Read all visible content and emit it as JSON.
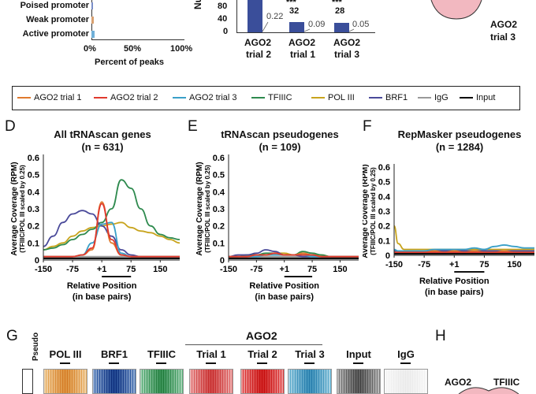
{
  "top_left": {
    "rows": [
      "Poised promoter",
      "Weak promoter",
      "Active promoter"
    ],
    "xticks": [
      "0%",
      "50%",
      "100%"
    ],
    "xlabel": "Percent of peaks"
  },
  "top_mid": {
    "ylabel": "Numb",
    "yticks": [
      "80",
      "40",
      "0"
    ],
    "categories": [
      [
        "AGO2",
        "trial 2"
      ],
      [
        "AGO2",
        "trial 1"
      ],
      [
        "AGO2",
        "trial 3"
      ]
    ],
    "bar_labels": [
      "",
      "32",
      "28"
    ],
    "stars": [
      "",
      "***",
      "***"
    ],
    "ratio_labels": [
      "0.22",
      "0.09",
      "0.05"
    ],
    "bar_values": [
      100,
      32,
      28
    ]
  },
  "top_right": {
    "line1": "AGO2",
    "line2": "trial 3"
  },
  "legend": [
    {
      "label": "AGO2 trial 1",
      "color": "#e07a2e"
    },
    {
      "label": "AGO2 trial 2",
      "color": "#e03a2e"
    },
    {
      "label": "AGO2 trial 3",
      "color": "#3aa0c8"
    },
    {
      "label": "TFIIIC",
      "color": "#2e8a4e"
    },
    {
      "label": "POL III",
      "color": "#c8a41e"
    },
    {
      "label": "BRF1",
      "color": "#4a4a9a"
    },
    {
      "label": "IgG",
      "color": "#999999"
    },
    {
      "label": "Input",
      "color": "#000000"
    }
  ],
  "panels": [
    {
      "letter": "D",
      "title1": "All tRNAscan genes",
      "title2": "(n = 631)"
    },
    {
      "letter": "E",
      "title1": "tRNAscan pseudogenes",
      "title2": "(n = 109)"
    },
    {
      "letter": "F",
      "title1": "RepMasker pseudogenes",
      "title2": "(n = 1284)"
    }
  ],
  "axes": {
    "yticks": [
      "0.6",
      "0.5",
      "0.4",
      "0.3",
      "0.2",
      "0.1",
      "0"
    ],
    "xticks": [
      "-150",
      "-75",
      "+1",
      "75",
      "150"
    ],
    "ylabel1": "Average Coverage (RPM)",
    "ylabel2": "(TFIIIC/POL III scaled by 0.25)",
    "xlabel1": "Relative Position",
    "xlabel2": "(in base pairs)"
  },
  "chart_data": [
    {
      "type": "line",
      "title": "All tRNAscan genes",
      "xlabel": "Relative Position (in base pairs)",
      "ylabel": "Average Coverage (RPM) (TFIIIC/POL III scaled by 0.25)",
      "xlim": [
        -150,
        200
      ],
      "ylim": [
        0,
        0.6
      ],
      "x": [
        -150,
        -125,
        -100,
        -75,
        -50,
        -25,
        0,
        25,
        50,
        75,
        100,
        125,
        150,
        175,
        200
      ],
      "series": [
        {
          "name": "AGO2 trial 1",
          "values": [
            0.02,
            0.02,
            0.02,
            0.02,
            0.03,
            0.06,
            0.34,
            0.1,
            0.03,
            0.02,
            0.02,
            0.02,
            0.02,
            0.02,
            0.02
          ]
        },
        {
          "name": "AGO2 trial 2",
          "values": [
            0.02,
            0.02,
            0.02,
            0.02,
            0.03,
            0.07,
            0.33,
            0.12,
            0.03,
            0.02,
            0.02,
            0.02,
            0.02,
            0.02,
            0.02
          ]
        },
        {
          "name": "AGO2 trial 3",
          "values": [
            0.02,
            0.02,
            0.02,
            0.02,
            0.03,
            0.1,
            0.21,
            0.22,
            0.04,
            0.02,
            0.02,
            0.02,
            0.02,
            0.02,
            0.02
          ]
        },
        {
          "name": "TFIIIC",
          "values": [
            0.06,
            0.07,
            0.09,
            0.12,
            0.15,
            0.18,
            0.22,
            0.3,
            0.47,
            0.42,
            0.3,
            0.2,
            0.15,
            0.13,
            0.12
          ]
        },
        {
          "name": "POL III",
          "values": [
            0.06,
            0.08,
            0.1,
            0.14,
            0.17,
            0.19,
            0.2,
            0.21,
            0.22,
            0.19,
            0.17,
            0.16,
            0.14,
            0.12,
            0.1
          ]
        },
        {
          "name": "BRF1",
          "values": [
            0.08,
            0.14,
            0.22,
            0.27,
            0.29,
            0.27,
            0.2,
            0.14,
            0.06,
            0.03,
            0.02,
            0.02,
            0.02,
            0.02,
            0.02
          ]
        },
        {
          "name": "IgG",
          "values": [
            0.02,
            0.02,
            0.02,
            0.02,
            0.02,
            0.02,
            0.02,
            0.02,
            0.02,
            0.02,
            0.02,
            0.02,
            0.02,
            0.02,
            0.02
          ]
        },
        {
          "name": "Input",
          "values": [
            0.01,
            0.01,
            0.01,
            0.01,
            0.01,
            0.01,
            0.01,
            0.01,
            0.01,
            0.01,
            0.01,
            0.01,
            0.01,
            0.01,
            0.01
          ]
        }
      ]
    },
    {
      "type": "line",
      "title": "tRNAscan pseudogenes",
      "xlabel": "Relative Position (in base pairs)",
      "ylabel": "Average Coverage (RPM) (TFIIIC/POL III scaled by 0.25)",
      "xlim": [
        -150,
        200
      ],
      "ylim": [
        0,
        0.6
      ],
      "x": [
        -150,
        -125,
        -100,
        -75,
        -50,
        -25,
        0,
        25,
        50,
        75,
        100,
        125,
        150,
        175,
        200
      ],
      "series": [
        {
          "name": "AGO2 trial 1",
          "values": [
            0.02,
            0.02,
            0.02,
            0.03,
            0.03,
            0.04,
            0.03,
            0.03,
            0.04,
            0.03,
            0.02,
            0.02,
            0.02,
            0.02,
            0.02
          ]
        },
        {
          "name": "AGO2 trial 2",
          "values": [
            0.02,
            0.02,
            0.02,
            0.03,
            0.03,
            0.04,
            0.03,
            0.03,
            0.03,
            0.03,
            0.02,
            0.02,
            0.02,
            0.02,
            0.02
          ]
        },
        {
          "name": "AGO2 trial 3",
          "values": [
            0.02,
            0.02,
            0.02,
            0.02,
            0.03,
            0.03,
            0.03,
            0.03,
            0.03,
            0.02,
            0.02,
            0.02,
            0.02,
            0.02,
            0.02
          ]
        },
        {
          "name": "TFIIIC",
          "values": [
            0.02,
            0.02,
            0.03,
            0.03,
            0.04,
            0.04,
            0.03,
            0.03,
            0.05,
            0.04,
            0.03,
            0.02,
            0.02,
            0.02,
            0.02
          ]
        },
        {
          "name": "POL III",
          "values": [
            0.02,
            0.02,
            0.03,
            0.03,
            0.03,
            0.04,
            0.04,
            0.03,
            0.04,
            0.03,
            0.03,
            0.02,
            0.02,
            0.02,
            0.02
          ]
        },
        {
          "name": "BRF1",
          "values": [
            0.02,
            0.03,
            0.03,
            0.04,
            0.06,
            0.05,
            0.03,
            0.03,
            0.02,
            0.02,
            0.02,
            0.02,
            0.02,
            0.02,
            0.02
          ]
        },
        {
          "name": "IgG",
          "values": [
            0.02,
            0.02,
            0.02,
            0.02,
            0.02,
            0.02,
            0.02,
            0.02,
            0.02,
            0.02,
            0.02,
            0.02,
            0.02,
            0.02,
            0.02
          ]
        },
        {
          "name": "Input",
          "values": [
            0.01,
            0.01,
            0.01,
            0.01,
            0.01,
            0.01,
            0.01,
            0.01,
            0.01,
            0.01,
            0.01,
            0.01,
            0.01,
            0.01,
            0.01
          ]
        }
      ]
    },
    {
      "type": "line",
      "title": "RepMasker pseudogenes",
      "xlabel": "Relative Position (in base pairs)",
      "ylabel": "Average Coverage (RPM) (TFIIIC/POL III scaled by 0.25)",
      "xlim": [
        -150,
        200
      ],
      "ylim": [
        0,
        0.6
      ],
      "x": [
        -150,
        -140,
        -125,
        -100,
        -75,
        -50,
        -25,
        0,
        25,
        50,
        75,
        100,
        125,
        150,
        175,
        200
      ],
      "series": [
        {
          "name": "AGO2 trial 1",
          "values": [
            0.02,
            0.02,
            0.02,
            0.02,
            0.02,
            0.03,
            0.02,
            0.03,
            0.02,
            0.03,
            0.02,
            0.02,
            0.03,
            0.02,
            0.02,
            0.02
          ]
        },
        {
          "name": "AGO2 trial 2",
          "values": [
            0.02,
            0.02,
            0.02,
            0.02,
            0.02,
            0.02,
            0.02,
            0.02,
            0.02,
            0.02,
            0.02,
            0.02,
            0.02,
            0.02,
            0.02,
            0.02
          ]
        },
        {
          "name": "AGO2 trial 3",
          "values": [
            0.04,
            0.03,
            0.03,
            0.03,
            0.03,
            0.04,
            0.04,
            0.04,
            0.04,
            0.05,
            0.04,
            0.06,
            0.07,
            0.06,
            0.05,
            0.05
          ]
        },
        {
          "name": "TFIIIC",
          "values": [
            0.03,
            0.03,
            0.03,
            0.03,
            0.03,
            0.03,
            0.03,
            0.03,
            0.03,
            0.03,
            0.03,
            0.03,
            0.03,
            0.03,
            0.03,
            0.03
          ]
        },
        {
          "name": "POL III",
          "values": [
            0.2,
            0.08,
            0.04,
            0.04,
            0.04,
            0.04,
            0.04,
            0.04,
            0.04,
            0.04,
            0.04,
            0.04,
            0.04,
            0.04,
            0.04,
            0.04
          ]
        },
        {
          "name": "BRF1",
          "values": [
            0.03,
            0.03,
            0.03,
            0.03,
            0.03,
            0.03,
            0.03,
            0.03,
            0.03,
            0.03,
            0.03,
            0.03,
            0.03,
            0.03,
            0.03,
            0.03
          ]
        },
        {
          "name": "IgG",
          "values": [
            0.02,
            0.02,
            0.02,
            0.02,
            0.02,
            0.02,
            0.02,
            0.02,
            0.02,
            0.02,
            0.02,
            0.02,
            0.02,
            0.02,
            0.02,
            0.02
          ]
        },
        {
          "name": "Input",
          "values": [
            0.01,
            0.01,
            0.01,
            0.01,
            0.01,
            0.01,
            0.01,
            0.01,
            0.01,
            0.01,
            0.01,
            0.01,
            0.01,
            0.01,
            0.01,
            0.01
          ]
        }
      ]
    }
  ],
  "panel_g": {
    "letter": "G",
    "side_label": "Pseudo",
    "group_label": "AGO2",
    "columns": [
      "POL III",
      "BRF1",
      "TFIIIC",
      "Trial 1",
      "Trial 2",
      "Trial 3",
      "Input",
      "IgG"
    ],
    "colors": [
      "#e8b060",
      "#3a6ab0",
      "#5ab07a",
      "#e06a6a",
      "#e04040",
      "#60b0d0",
      "#808080",
      "#f4f4f4"
    ]
  },
  "panel_h": {
    "letter": "H",
    "left": "AGO2",
    "right": "TFIIIC"
  }
}
